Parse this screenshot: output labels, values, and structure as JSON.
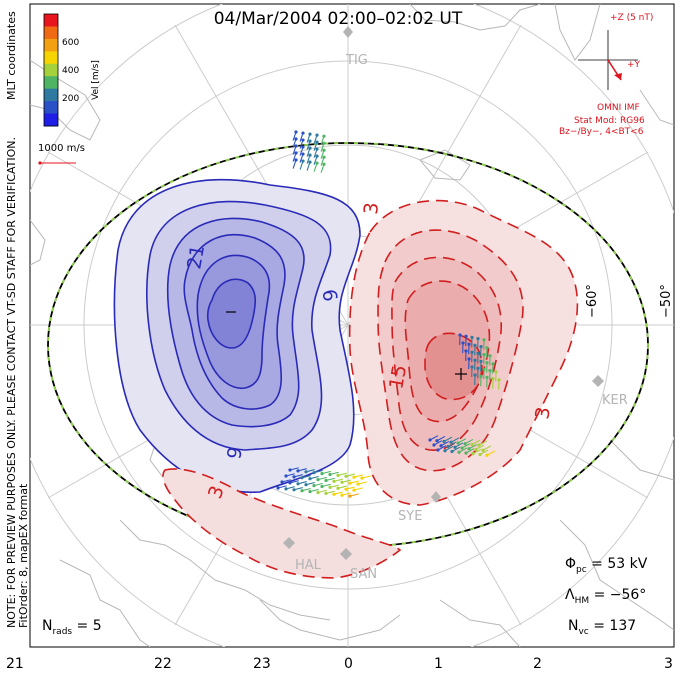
{
  "title": "04/Mar/2004 02:00–02:02 UT",
  "colorbar": {
    "label": "Vel [m/s]",
    "ticks": [
      "600",
      "400",
      "200"
    ],
    "colors": [
      "#e8141e",
      "#f06a14",
      "#f3a012",
      "#f6d400",
      "#a5d23c",
      "#4fb464",
      "#2e7aa0",
      "#2a50c8",
      "#1e1ee6"
    ]
  },
  "coord_label": "MLT coordinates",
  "vector_scale": "1000 m/s",
  "imf": {
    "z_label": "+Z (5 nT)",
    "y_label": "+Y",
    "source": "OMNI IMF",
    "model": "Stat Mod: RG96",
    "conditions": "Bz−/By−, 4<BT<6"
  },
  "side_note_1": "NOTE: FOR PREVIEW PURPOSES ONLY. PLEASE CONTACT VT-SD STAFF FOR VERIFICATION.",
  "side_note_2": "FitOrder: 8, mapEX format",
  "latitude_labels": [
    "−60°",
    "−50°"
  ],
  "stations": [
    "TIG",
    "KER",
    "SYE",
    "HAL",
    "SAN"
  ],
  "contour_labels": [
    "21",
    "9",
    "9",
    "3",
    "15",
    "3",
    "3"
  ],
  "stats": {
    "phi_pc": "53 kV",
    "lambda_hm": "−56°",
    "n_vc": "137",
    "n_rads": "5"
  },
  "mlt_ticks": [
    "21",
    "22",
    "23",
    "0",
    "1",
    "2",
    "3"
  ],
  "colors": {
    "negative_cell": "#3c3cc8",
    "positive_cell": "#d21e1e",
    "hmb": "#8fd24a",
    "land": "#b4b4b4",
    "grid": "#c8c8c8"
  }
}
